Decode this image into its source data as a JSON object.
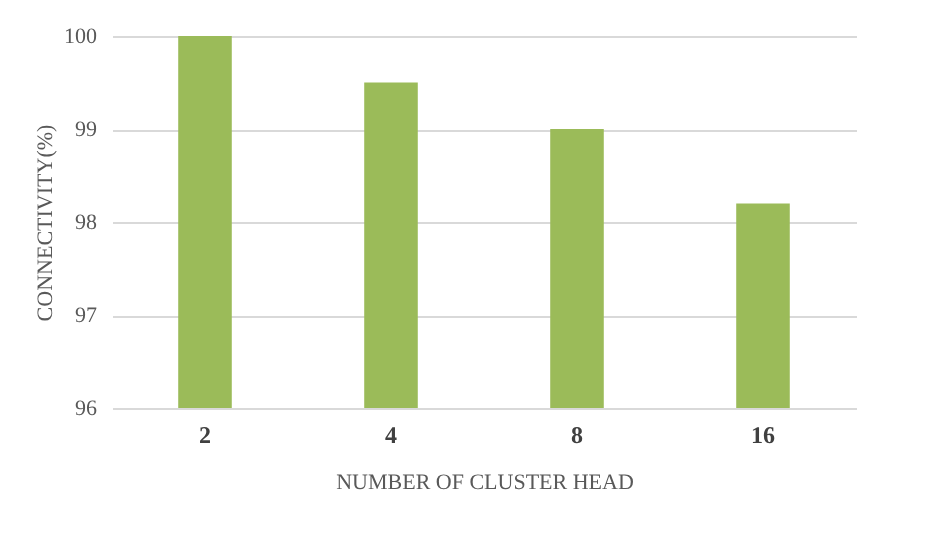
{
  "chart_data": {
    "type": "bar",
    "xlabel": "NUMBER OF CLUSTER HEAD",
    "ylabel": "CONNECTIVITY(%)",
    "categories": [
      "2",
      "4",
      "8",
      "16"
    ],
    "values": [
      100,
      99.5,
      99,
      98.2
    ],
    "color": "#9bbb59",
    "ylim": [
      96,
      100
    ],
    "yticks": [
      96,
      97,
      98,
      99,
      100
    ],
    "grid": "y"
  }
}
